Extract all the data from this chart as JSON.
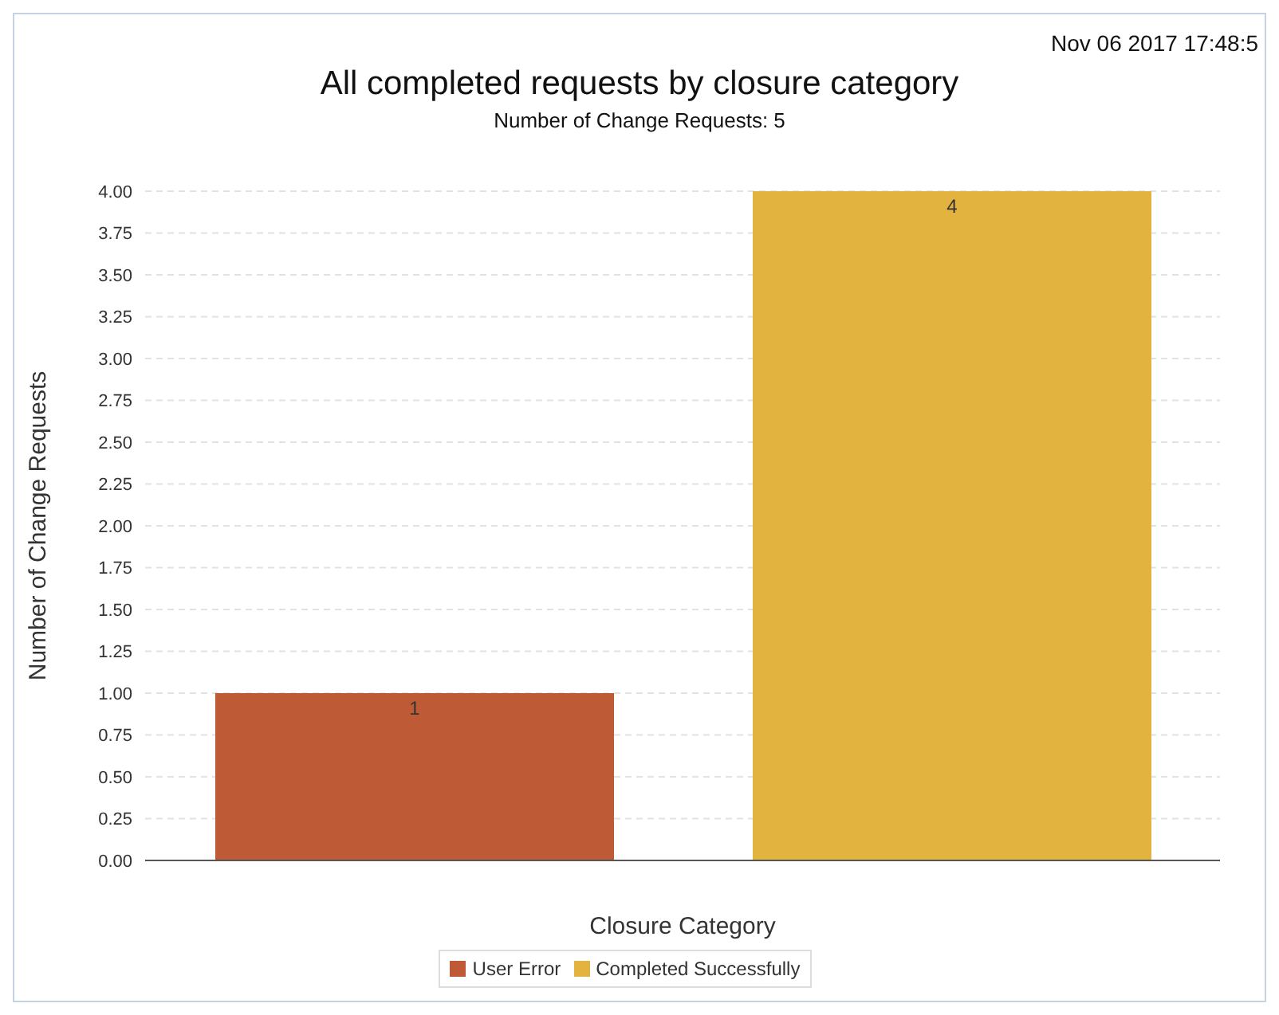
{
  "chart_data": {
    "type": "bar",
    "title": "All completed requests by closure category",
    "subtitle": "Number of Change Requests: 5",
    "xlabel": "Closure Category",
    "ylabel": "Number of Change Requests",
    "annotations": [
      "Nov 06 2017 17:48:5"
    ],
    "categories": [
      null,
      null
    ],
    "series": [
      {
        "name": "User Error",
        "color": "#bf5a36",
        "values": [
          1,
          null
        ]
      },
      {
        "name": "Completed Successfully",
        "color": "#e3b33f",
        "values": [
          null,
          4
        ]
      }
    ],
    "ylim": [
      0,
      4
    ],
    "yticks": [
      {
        "value": 0,
        "label": "0.00"
      },
      {
        "value": 0.25,
        "label": "0.25"
      },
      {
        "value": 0.5,
        "label": "0.50"
      },
      {
        "value": 0.75,
        "label": "0.75"
      },
      {
        "value": 1,
        "label": "1.00"
      },
      {
        "value": 1.25,
        "label": "1.25"
      },
      {
        "value": 1.5,
        "label": "1.50"
      },
      {
        "value": 1.75,
        "label": "1.75"
      },
      {
        "value": 2,
        "label": "2.00"
      },
      {
        "value": 2.25,
        "label": "2.25"
      },
      {
        "value": 2.5,
        "label": "2.50"
      },
      {
        "value": 2.75,
        "label": "2.75"
      },
      {
        "value": 3,
        "label": "3.00"
      },
      {
        "value": 3.25,
        "label": "3.25"
      },
      {
        "value": 3.5,
        "label": "3.50"
      },
      {
        "value": 3.75,
        "label": "3.75"
      },
      {
        "value": 4,
        "label": "4.00"
      }
    ],
    "grid": "y",
    "legend": "bottom",
    "tick_labels": "y",
    "data_labels": true
  }
}
